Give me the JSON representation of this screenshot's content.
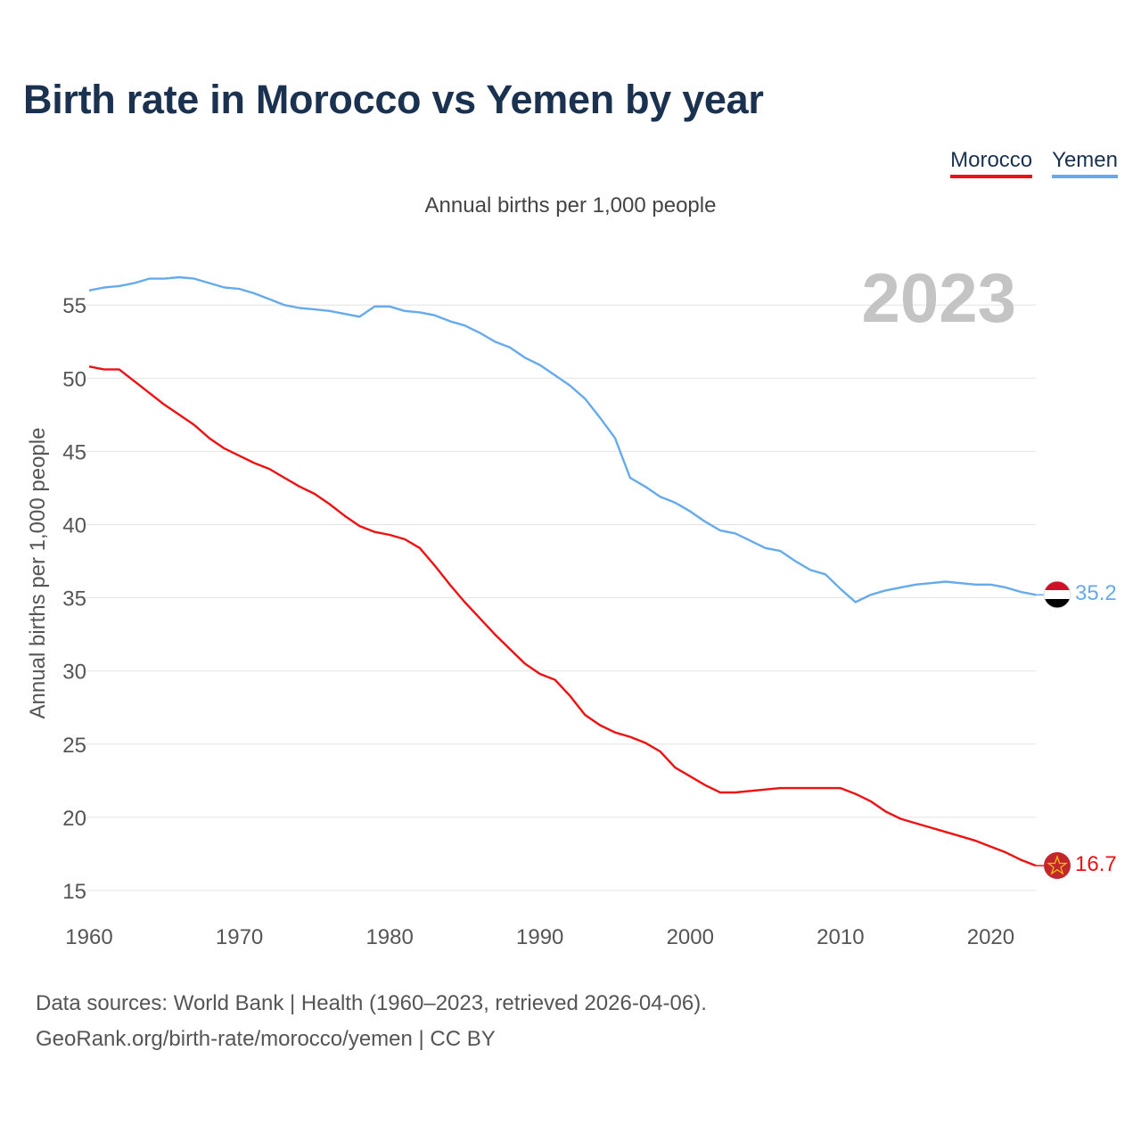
{
  "title": "Birth rate in Morocco vs Yemen by year",
  "subtitle": "Annual births per 1,000 people",
  "legend": [
    {
      "name": "Morocco",
      "color": "#ee1111"
    },
    {
      "name": "Yemen",
      "color": "#66aaee"
    }
  ],
  "year_label": "2023",
  "source": {
    "line1": "Data sources: World Bank | Health (1960–2023, retrieved 2026-04-06).",
    "line2": "GeoRank.org/birth-rate/morocco/yemen | CC BY"
  },
  "chart_data": {
    "type": "line",
    "title": "Birth rate in Morocco vs Yemen by year",
    "xlabel": "",
    "ylabel": "Annual births per 1,000 people",
    "xlim": [
      1960,
      2023
    ],
    "ylim": [
      15,
      57
    ],
    "x_ticks": [
      1960,
      1970,
      1980,
      1990,
      2000,
      2010,
      2020
    ],
    "y_ticks": [
      15,
      20,
      25,
      30,
      35,
      40,
      45,
      50,
      55
    ],
    "x": [
      1960,
      1961,
      1962,
      1963,
      1964,
      1965,
      1966,
      1967,
      1968,
      1969,
      1970,
      1971,
      1972,
      1973,
      1974,
      1975,
      1976,
      1977,
      1978,
      1979,
      1980,
      1981,
      1982,
      1983,
      1984,
      1985,
      1986,
      1987,
      1988,
      1989,
      1990,
      1991,
      1992,
      1993,
      1994,
      1995,
      1996,
      1997,
      1998,
      1999,
      2000,
      2001,
      2002,
      2003,
      2004,
      2005,
      2006,
      2007,
      2008,
      2009,
      2010,
      2011,
      2012,
      2013,
      2014,
      2015,
      2016,
      2017,
      2018,
      2019,
      2020,
      2021,
      2022,
      2023
    ],
    "series": [
      {
        "name": "Morocco",
        "color": "#ee1111",
        "end_label": "16.7",
        "values": [
          50.8,
          50.6,
          50.6,
          49.8,
          49.0,
          48.2,
          47.5,
          46.8,
          45.9,
          45.2,
          44.7,
          44.2,
          43.8,
          43.2,
          42.6,
          42.1,
          41.4,
          40.6,
          39.9,
          39.5,
          39.3,
          39.0,
          38.4,
          37.2,
          35.9,
          34.7,
          33.6,
          32.5,
          31.5,
          30.5,
          29.8,
          29.4,
          28.3,
          27.0,
          26.3,
          25.8,
          25.5,
          25.1,
          24.5,
          23.4,
          22.8,
          22.2,
          21.7,
          21.7,
          21.8,
          21.9,
          22.0,
          22.0,
          22.0,
          22.0,
          22.0,
          21.6,
          21.1,
          20.4,
          19.9,
          19.6,
          19.3,
          19.0,
          18.7,
          18.4,
          18.0,
          17.6,
          17.1,
          16.7
        ]
      },
      {
        "name": "Yemen",
        "color": "#66aaee",
        "end_label": "35.2",
        "values": [
          56.0,
          56.2,
          56.3,
          56.5,
          56.8,
          56.8,
          56.9,
          56.8,
          56.5,
          56.2,
          56.1,
          55.8,
          55.4,
          55.0,
          54.8,
          54.7,
          54.6,
          54.4,
          54.2,
          54.9,
          54.9,
          54.6,
          54.5,
          54.3,
          53.9,
          53.6,
          53.1,
          52.5,
          52.1,
          51.4,
          50.9,
          50.2,
          49.5,
          48.6,
          47.3,
          45.9,
          43.2,
          42.6,
          41.9,
          41.5,
          40.9,
          40.2,
          39.6,
          39.4,
          38.9,
          38.4,
          38.2,
          37.5,
          36.9,
          36.6,
          35.6,
          34.7,
          35.2,
          35.5,
          35.7,
          35.9,
          36.0,
          36.1,
          36.0,
          35.9,
          35.9,
          35.7,
          35.4,
          35.2
        ]
      }
    ]
  }
}
